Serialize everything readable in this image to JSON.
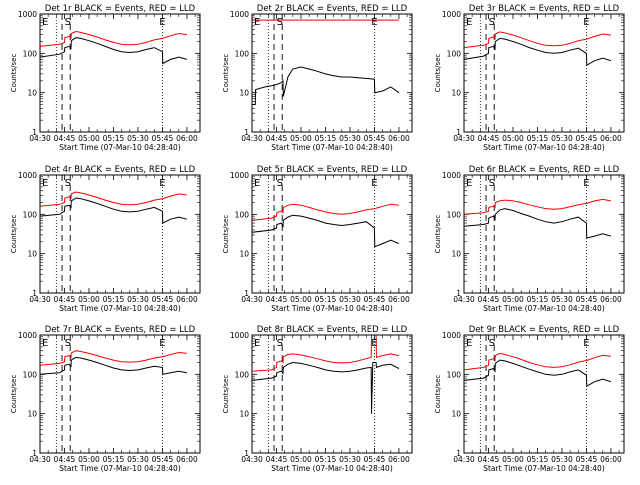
{
  "figure": {
    "x_tick_labels": [
      "04:30",
      "04:45",
      "05:00",
      "05:15",
      "05:30",
      "05:45",
      "06:00"
    ],
    "xlabel": "Start Time (07-Mar-10 04:28:40)",
    "ylabel": "Counts/sec",
    "y_tick_labels": [
      "1",
      "10",
      "100",
      "1000"
    ],
    "legend_text": "BLACK = Events, RED = LLD",
    "colors": {
      "events": "#000000",
      "lld": "#ff0000",
      "axes": "#000000"
    }
  },
  "chart_data": [
    {
      "type": "line",
      "title": "Det 1r BLACK = Events, RED = LLD",
      "xlabel": "Start Time (07-Mar-10 04:28:40)",
      "ylabel": "Counts/sec",
      "y_scale": "log",
      "ylim": [
        1,
        1000
      ],
      "x_minutes": [
        0,
        12,
        15,
        15.2,
        18,
        19,
        19.2,
        22,
        25,
        30,
        35,
        40,
        45,
        50,
        55,
        60,
        65,
        70,
        75,
        75.2,
        80,
        85,
        90
      ],
      "series": [
        {
          "name": "Events",
          "values": [
            80,
            95,
            110,
            140,
            150,
            135,
            210,
            250,
            240,
            210,
            180,
            150,
            125,
            110,
            105,
            110,
            125,
            140,
            110,
            55,
            70,
            80,
            70
          ]
        },
        {
          "name": "LLD",
          "values": [
            150,
            170,
            190,
            250,
            270,
            245,
            320,
            360,
            340,
            300,
            260,
            220,
            190,
            170,
            165,
            170,
            190,
            220,
            240,
            240,
            280,
            320,
            300
          ]
        }
      ],
      "markers": [
        {
          "label": "E",
          "x_minutes": 0
        },
        {
          "label": "S",
          "x_minutes": 17
        },
        {
          "label": "E",
          "x_minutes": 75
        }
      ],
      "dotted_x": [
        10,
        75
      ],
      "dashed_x": [
        13.5,
        18.5
      ]
    },
    {
      "type": "line",
      "title": "Det 2r BLACK = Events, RED = LLD",
      "xlabel": "Start Time (07-Mar-10 04:28:40)",
      "ylabel": "Counts/sec",
      "y_scale": "log",
      "ylim": [
        1,
        1000
      ],
      "x_minutes": [
        0,
        2,
        2.2,
        8,
        12,
        15,
        18,
        19,
        19.2,
        22,
        25,
        30,
        35,
        40,
        45,
        50,
        55,
        60,
        65,
        70,
        75,
        75.2,
        80,
        85,
        90
      ],
      "series": [
        {
          "name": "Events",
          "values": [
            5,
            5,
            12,
            14,
            15,
            16,
            18,
            20,
            8,
            25,
            40,
            45,
            40,
            35,
            30,
            27,
            25,
            25,
            24,
            23,
            22,
            10,
            11,
            14,
            10
          ]
        },
        {
          "name": "LLD",
          "values": [
            700,
            700,
            700,
            700,
            700,
            700,
            700,
            700,
            700,
            700,
            700,
            700,
            700,
            700,
            700,
            700,
            700,
            700,
            700,
            700,
            700,
            700,
            700,
            700,
            700
          ]
        }
      ],
      "markers": [
        {
          "label": "E",
          "x_minutes": 0
        },
        {
          "label": "S",
          "x_minutes": 17
        },
        {
          "label": "E",
          "x_minutes": 75
        }
      ],
      "dotted_x": [
        10,
        75
      ],
      "dashed_x": [
        13.5,
        18.5
      ]
    },
    {
      "type": "line",
      "title": "Det 3r BLACK = Events, RED = LLD",
      "xlabel": "Start Time (07-Mar-10 04:28:40)",
      "ylabel": "Counts/sec",
      "y_scale": "log",
      "ylim": [
        1,
        1000
      ],
      "x_minutes": [
        0,
        12,
        15,
        15.2,
        18,
        19,
        19.2,
        22,
        25,
        30,
        35,
        40,
        45,
        50,
        55,
        60,
        65,
        70,
        75,
        75.2,
        80,
        85,
        90
      ],
      "series": [
        {
          "name": "Events",
          "values": [
            70,
            85,
            100,
            140,
            150,
            130,
            200,
            240,
            230,
            200,
            170,
            140,
            120,
            105,
            100,
            105,
            120,
            135,
            100,
            50,
            65,
            75,
            65
          ]
        },
        {
          "name": "LLD",
          "values": [
            140,
            160,
            180,
            240,
            260,
            235,
            310,
            350,
            330,
            290,
            250,
            210,
            180,
            160,
            155,
            160,
            180,
            210,
            230,
            230,
            270,
            310,
            290
          ]
        }
      ],
      "markers": [
        {
          "label": "E",
          "x_minutes": 0
        },
        {
          "label": "S",
          "x_minutes": 17
        },
        {
          "label": "E",
          "x_minutes": 75
        }
      ],
      "dotted_x": [
        10,
        75
      ],
      "dashed_x": [
        13.5,
        18.5
      ]
    },
    {
      "type": "line",
      "title": "Det 4r BLACK = Events, RED = LLD",
      "xlabel": "Start Time (07-Mar-10 04:28:40)",
      "ylabel": "Counts/sec",
      "y_scale": "log",
      "ylim": [
        1,
        1000
      ],
      "x_minutes": [
        0,
        12,
        15,
        15.2,
        18,
        19,
        19.2,
        22,
        25,
        30,
        35,
        40,
        45,
        50,
        55,
        60,
        65,
        70,
        75,
        75.2,
        80,
        85,
        90
      ],
      "series": [
        {
          "name": "Events",
          "values": [
            90,
            100,
            120,
            160,
            170,
            150,
            220,
            260,
            250,
            220,
            190,
            160,
            135,
            120,
            115,
            120,
            135,
            150,
            120,
            60,
            75,
            85,
            75
          ]
        },
        {
          "name": "LLD",
          "values": [
            160,
            180,
            200,
            260,
            280,
            255,
            330,
            370,
            350,
            310,
            270,
            230,
            200,
            180,
            175,
            180,
            200,
            230,
            250,
            250,
            290,
            330,
            310
          ]
        }
      ],
      "markers": [
        {
          "label": "E",
          "x_minutes": 0
        },
        {
          "label": "S",
          "x_minutes": 17
        },
        {
          "label": "E",
          "x_minutes": 75
        }
      ],
      "dotted_x": [
        10,
        75
      ],
      "dashed_x": [
        13.5,
        18.5
      ]
    },
    {
      "type": "line",
      "title": "Det 5r BLACK = Events, RED = LLD",
      "xlabel": "Start Time (07-Mar-10 04:28:40)",
      "ylabel": "Counts/sec",
      "y_scale": "log",
      "ylim": [
        1,
        1000
      ],
      "x_minutes": [
        0,
        12,
        15,
        15.2,
        18,
        19,
        19.2,
        22,
        25,
        30,
        35,
        40,
        45,
        50,
        55,
        60,
        65,
        70,
        75,
        75.2,
        80,
        85,
        90
      ],
      "series": [
        {
          "name": "Events",
          "values": [
            35,
            40,
            45,
            55,
            60,
            50,
            70,
            85,
            95,
            90,
            80,
            70,
            60,
            55,
            52,
            55,
            60,
            65,
            45,
            15,
            18,
            22,
            18
          ]
        },
        {
          "name": "LLD",
          "values": [
            70,
            80,
            90,
            110,
            120,
            110,
            150,
            170,
            180,
            170,
            150,
            130,
            115,
            105,
            100,
            105,
            115,
            130,
            140,
            140,
            160,
            180,
            170
          ]
        }
      ],
      "markers": [
        {
          "label": "E",
          "x_minutes": 0
        },
        {
          "label": "S",
          "x_minutes": 17
        },
        {
          "label": "E",
          "x_minutes": 75
        }
      ],
      "dotted_x": [
        10,
        75
      ],
      "dashed_x": [
        13.5,
        18.5
      ]
    },
    {
      "type": "line",
      "title": "Det 6r BLACK = Events, RED = LLD",
      "xlabel": "Start Time (07-Mar-10 04:28:40)",
      "ylabel": "Counts/sec",
      "y_scale": "log",
      "ylim": [
        1,
        1000
      ],
      "x_minutes": [
        0,
        12,
        15,
        15.2,
        18,
        19,
        19.2,
        22,
        25,
        30,
        35,
        40,
        45,
        50,
        55,
        60,
        65,
        70,
        75,
        75.2,
        80,
        85,
        90
      ],
      "series": [
        {
          "name": "Events",
          "values": [
            50,
            55,
            60,
            80,
            90,
            75,
            100,
            130,
            140,
            125,
            105,
            90,
            75,
            65,
            60,
            65,
            75,
            85,
            60,
            25,
            28,
            32,
            28
          ]
        },
        {
          "name": "LLD",
          "values": [
            100,
            110,
            120,
            150,
            160,
            150,
            200,
            220,
            230,
            220,
            200,
            175,
            155,
            140,
            135,
            140,
            155,
            175,
            190,
            190,
            220,
            240,
            220
          ]
        }
      ],
      "markers": [
        {
          "label": "E",
          "x_minutes": 0
        },
        {
          "label": "S",
          "x_minutes": 17
        },
        {
          "label": "E",
          "x_minutes": 75
        }
      ],
      "dotted_x": [
        10,
        75
      ],
      "dashed_x": [
        13.5,
        18.5
      ]
    },
    {
      "type": "line",
      "title": "Det 7r BLACK = Events, RED = LLD",
      "xlabel": "Start Time (07-Mar-10 04:28:40)",
      "ylabel": "Counts/sec",
      "y_scale": "log",
      "ylim": [
        1,
        1000
      ],
      "x_minutes": [
        0,
        12,
        15,
        15.2,
        18,
        19,
        19.2,
        22,
        25,
        30,
        35,
        40,
        45,
        50,
        55,
        60,
        65,
        70,
        75,
        75.2,
        80,
        85,
        90
      ],
      "series": [
        {
          "name": "Events",
          "values": [
            100,
            110,
            130,
            170,
            180,
            160,
            230,
            270,
            260,
            230,
            200,
            170,
            145,
            130,
            125,
            130,
            145,
            160,
            150,
            100,
            110,
            120,
            110
          ]
        },
        {
          "name": "LLD",
          "values": [
            170,
            190,
            210,
            280,
            300,
            270,
            350,
            400,
            380,
            340,
            300,
            260,
            230,
            210,
            205,
            210,
            230,
            260,
            280,
            280,
            320,
            360,
            340
          ]
        }
      ],
      "markers": [
        {
          "label": "E",
          "x_minutes": 0
        },
        {
          "label": "S",
          "x_minutes": 17
        },
        {
          "label": "E",
          "x_minutes": 75
        }
      ],
      "dotted_x": [
        10,
        75
      ],
      "dashed_x": [
        13.5,
        18.5
      ]
    },
    {
      "type": "line",
      "title": "Det 8r BLACK = Events, RED = LLD",
      "xlabel": "Start Time (07-Mar-10 04:28:40)",
      "ylabel": "Counts/sec",
      "y_scale": "log",
      "ylim": [
        1,
        1000
      ],
      "x_minutes": [
        0,
        12,
        15,
        15.2,
        18,
        19,
        19.2,
        22,
        25,
        30,
        35,
        40,
        45,
        50,
        55,
        60,
        65,
        70,
        73,
        73.2,
        74,
        76,
        76.2,
        80,
        85,
        90
      ],
      "series": [
        {
          "name": "Events",
          "values": [
            70,
            80,
            90,
            110,
            120,
            105,
            150,
            180,
            200,
            190,
            170,
            150,
            130,
            120,
            115,
            120,
            130,
            145,
            150,
            10,
            200,
            200,
            150,
            170,
            180,
            140
          ]
        },
        {
          "name": "LLD",
          "values": [
            120,
            130,
            150,
            200,
            220,
            200,
            280,
            320,
            330,
            310,
            280,
            250,
            220,
            200,
            195,
            200,
            220,
            250,
            270,
            1000,
            1000,
            1000,
            270,
            300,
            330,
            300
          ]
        }
      ],
      "markers": [
        {
          "label": "E",
          "x_minutes": 0
        },
        {
          "label": "S",
          "x_minutes": 17
        },
        {
          "label": "E",
          "x_minutes": 75
        }
      ],
      "dotted_x": [
        10,
        75
      ],
      "dashed_x": [
        13.5,
        18.5
      ]
    },
    {
      "type": "line",
      "title": "Det 9r BLACK = Events, RED = LLD",
      "xlabel": "Start Time (07-Mar-10 04:28:40)",
      "ylabel": "Counts/sec",
      "y_scale": "log",
      "ylim": [
        1,
        1000
      ],
      "x_minutes": [
        0,
        12,
        15,
        15.2,
        18,
        19,
        19.2,
        22,
        25,
        30,
        35,
        40,
        45,
        50,
        55,
        60,
        65,
        70,
        75,
        75.2,
        80,
        85,
        90
      ],
      "series": [
        {
          "name": "Events",
          "values": [
            70,
            80,
            95,
            130,
            140,
            120,
            190,
            230,
            220,
            190,
            160,
            135,
            115,
            100,
            95,
            100,
            115,
            130,
            95,
            50,
            65,
            75,
            65
          ]
        },
        {
          "name": "LLD",
          "values": [
            130,
            150,
            170,
            230,
            250,
            225,
            300,
            340,
            320,
            280,
            240,
            200,
            175,
            155,
            150,
            155,
            175,
            205,
            225,
            225,
            265,
            305,
            285
          ]
        }
      ],
      "markers": [
        {
          "label": "E",
          "x_minutes": 0
        },
        {
          "label": "S",
          "x_minutes": 17
        },
        {
          "label": "E",
          "x_minutes": 75
        }
      ],
      "dotted_x": [
        10,
        75
      ],
      "dashed_x": [
        13.5,
        18.5
      ]
    }
  ]
}
